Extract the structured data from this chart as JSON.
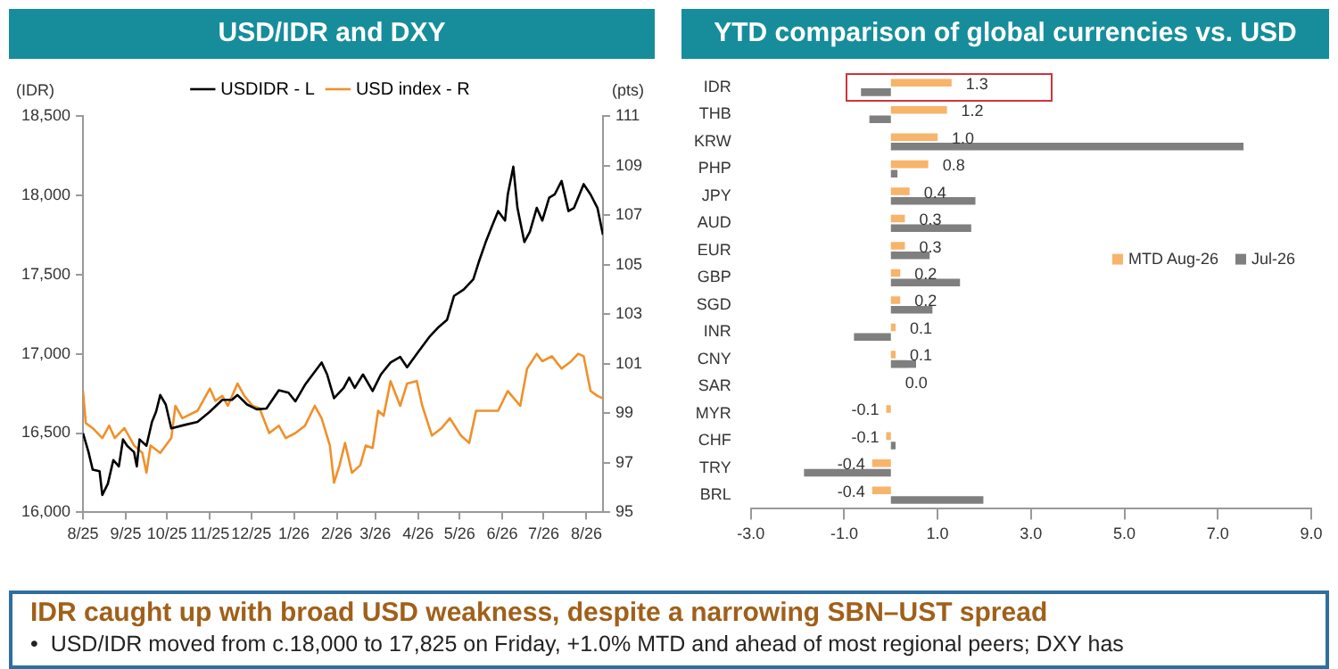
{
  "chart_data": [
    {
      "type": "line",
      "title": "USD/IDR and DXY",
      "ylabel": "(IDR)",
      "y2label": "(pts)",
      "legend": "top",
      "marker": "none",
      "xlim": [
        "2025-08-01",
        "2026-08-13"
      ],
      "xticks": [
        {
          "value": "2025-08-01",
          "label": "8/25"
        },
        {
          "value": "2025-09-01",
          "label": "9/25"
        },
        {
          "value": "2025-10-01",
          "label": "10/25"
        },
        {
          "value": "2025-11-01",
          "label": "11/25"
        },
        {
          "value": "2025-12-01",
          "label": "12/25"
        },
        {
          "value": "2026-01-01",
          "label": "1/26"
        },
        {
          "value": "2026-02-01",
          "label": "2/26"
        },
        {
          "value": "2026-03-01",
          "label": "3/26"
        },
        {
          "value": "2026-04-01",
          "label": "4/26"
        },
        {
          "value": "2026-05-01",
          "label": "5/26"
        },
        {
          "value": "2026-06-01",
          "label": "6/26"
        },
        {
          "value": "2026-07-01",
          "label": "7/26"
        },
        {
          "value": "2026-08-01",
          "label": "8/26"
        }
      ],
      "ylim": [
        16000,
        18500
      ],
      "yticks": [
        {
          "value": 16000,
          "label": "16,000"
        },
        {
          "value": 16500,
          "label": "16,500"
        },
        {
          "value": 17000,
          "label": "17,000"
        },
        {
          "value": 17500,
          "label": "17,500"
        },
        {
          "value": 18000,
          "label": "18,000"
        },
        {
          "value": 18500,
          "label": "18,500"
        }
      ],
      "y2lim": [
        95,
        111
      ],
      "y2ticks": [
        95,
        97,
        99,
        101,
        103,
        105,
        107,
        109,
        111
      ],
      "series": [
        {
          "name": "USDIDR - L",
          "color": "#000000",
          "axis": "y",
          "x": [
            "2025-08-01",
            "2025-08-05",
            "2025-08-08",
            "2025-08-13",
            "2025-08-15",
            "2025-08-19",
            "2025-08-23",
            "2025-08-27",
            "2025-08-30",
            "2025-09-02",
            "2025-09-07",
            "2025-09-09",
            "2025-09-11",
            "2025-09-16",
            "2025-09-20",
            "2025-09-23",
            "2025-09-26",
            "2025-09-30",
            "2025-10-04",
            "2025-10-13",
            "2025-10-23",
            "2025-11-01",
            "2025-11-10",
            "2025-11-17",
            "2025-11-21",
            "2025-11-28",
            "2025-12-05",
            "2025-12-12",
            "2025-12-21",
            "2025-12-28",
            "2026-01-02",
            "2026-01-09",
            "2026-01-21",
            "2026-01-25",
            "2026-01-30",
            "2026-02-06",
            "2026-02-10",
            "2026-02-14",
            "2026-02-20",
            "2026-02-27",
            "2026-03-05",
            "2026-03-12",
            "2026-03-19",
            "2026-03-24",
            "2026-03-31",
            "2026-04-09",
            "2026-04-16",
            "2026-04-22",
            "2026-04-27",
            "2026-05-04",
            "2026-05-11",
            "2026-05-15",
            "2026-05-20",
            "2026-05-25",
            "2026-05-29",
            "2026-06-03",
            "2026-06-05",
            "2026-06-09",
            "2026-06-12",
            "2026-06-17",
            "2026-06-21",
            "2026-06-26",
            "2026-06-30",
            "2026-07-05",
            "2026-07-09",
            "2026-07-14",
            "2026-07-19",
            "2026-07-23",
            "2026-07-30",
            "2026-08-04",
            "2026-08-09",
            "2026-08-13"
          ],
          "values": [
            16500,
            16380,
            16270,
            16260,
            16110,
            16180,
            16330,
            16290,
            16460,
            16420,
            16380,
            16290,
            16460,
            16420,
            16570,
            16635,
            16740,
            16680,
            16530,
            16550,
            16570,
            16635,
            16710,
            16710,
            16740,
            16680,
            16650,
            16655,
            16770,
            16755,
            16700,
            16805,
            16945,
            16870,
            16720,
            16785,
            16850,
            16785,
            16870,
            16765,
            16870,
            16945,
            16980,
            16915,
            17000,
            17105,
            17170,
            17215,
            17365,
            17405,
            17470,
            17580,
            17705,
            17815,
            17900,
            17840,
            18005,
            18180,
            17920,
            17705,
            17770,
            17920,
            17840,
            17985,
            18005,
            18090,
            17900,
            17920,
            18070,
            18005,
            17920,
            17750
          ]
        },
        {
          "name": "USD index - R",
          "color": "#f0902a",
          "axis": "y2",
          "x": [
            "2025-08-01",
            "2025-08-03",
            "2025-08-08",
            "2025-08-15",
            "2025-08-20",
            "2025-08-24",
            "2025-08-31",
            "2025-09-07",
            "2025-09-13",
            "2025-09-16",
            "2025-09-19",
            "2025-09-26",
            "2025-10-04",
            "2025-10-07",
            "2025-10-12",
            "2025-10-23",
            "2025-11-01",
            "2025-11-05",
            "2025-11-10",
            "2025-11-14",
            "2025-11-21",
            "2025-11-26",
            "2025-12-02",
            "2025-12-07",
            "2025-12-14",
            "2025-12-21",
            "2025-12-26",
            "2026-01-02",
            "2026-01-09",
            "2026-01-16",
            "2026-01-21",
            "2026-01-27",
            "2026-01-30",
            "2026-02-03",
            "2026-02-07",
            "2026-02-12",
            "2026-02-18",
            "2026-02-22",
            "2026-02-27",
            "2026-03-03",
            "2026-03-07",
            "2026-03-12",
            "2026-03-19",
            "2026-03-24",
            "2026-03-31",
            "2026-04-04",
            "2026-04-11",
            "2026-04-18",
            "2026-04-24",
            "2026-05-02",
            "2026-05-08",
            "2026-05-13",
            "2026-05-20",
            "2026-05-29",
            "2026-06-05",
            "2026-06-14",
            "2026-06-19",
            "2026-06-26",
            "2026-06-30",
            "2026-07-07",
            "2026-07-14",
            "2026-07-21",
            "2026-07-26",
            "2026-07-30",
            "2026-08-04",
            "2026-08-09",
            "2026-08-13"
          ],
          "values": [
            99.9,
            98.6,
            98.4,
            98.0,
            98.5,
            98.0,
            98.4,
            97.7,
            97.4,
            96.6,
            97.7,
            97.4,
            98.0,
            99.3,
            98.8,
            99.1,
            100.0,
            99.5,
            99.7,
            99.3,
            100.2,
            99.7,
            99.3,
            99.2,
            98.2,
            98.5,
            98.0,
            98.2,
            98.5,
            99.3,
            98.8,
            97.7,
            96.2,
            96.9,
            97.8,
            96.6,
            96.9,
            97.7,
            97.6,
            99.1,
            98.9,
            100.3,
            99.3,
            100.2,
            100.3,
            99.3,
            98.1,
            98.4,
            98.8,
            98.1,
            97.8,
            99.1,
            99.1,
            99.1,
            99.9,
            99.3,
            100.8,
            101.4,
            101.1,
            101.3,
            100.8,
            101.1,
            101.4,
            101.3,
            99.9,
            99.7,
            99.6
          ]
        }
      ]
    },
    {
      "type": "bar",
      "orientation": "horizontal",
      "title": "YTD comparison of global currencies vs. USD",
      "legend": "right",
      "categories": [
        "IDR",
        "THB",
        "KRW",
        "PHP",
        "JPY",
        "AUD",
        "EUR",
        "GBP",
        "SGD",
        "INR",
        "CNY",
        "SAR",
        "MYR",
        "CHF",
        "TRY",
        "BRL"
      ],
      "xlim": [
        -3,
        9
      ],
      "xticks": [
        {
          "value": -3,
          "label": "-3.0"
        },
        {
          "value": -1,
          "label": "-1.0"
        },
        {
          "value": 1,
          "label": "1.0"
        },
        {
          "value": 3,
          "label": "3.0"
        },
        {
          "value": 5,
          "label": "5.0"
        },
        {
          "value": 7,
          "label": "7.0"
        },
        {
          "value": 9,
          "label": "9.0"
        }
      ],
      "series": [
        {
          "name": "MTD Aug-26",
          "color": "#f7b46a",
          "values": [
            1.3,
            1.2,
            1.0,
            0.8,
            0.4,
            0.3,
            0.3,
            0.2,
            0.2,
            0.1,
            0.1,
            0.0,
            -0.1,
            -0.1,
            -0.4,
            -0.4
          ],
          "value_labels": [
            "1.3",
            "1.2",
            "1.0",
            "0.8",
            "0.4",
            "0.3",
            "0.3",
            "0.2",
            "0.2",
            "0.1",
            "0.1",
            "0.0",
            "-0.1",
            "-0.1",
            "-0.4",
            "-0.4"
          ]
        },
        {
          "name": "Jul-26",
          "color": "#7f7f7f",
          "values": [
            -0.64,
            -0.46,
            7.55,
            0.14,
            1.81,
            1.72,
            0.83,
            1.48,
            0.89,
            -0.79,
            0.54,
            0.0,
            0.0,
            0.1,
            -1.86,
            1.98
          ]
        }
      ]
    },
    {
      "type": "other",
      "title": "IDR caught up with broad USD weakness, despite a narrowing SBN–UST spread",
      "annotations": [
        "•  USD/IDR moved from c.18,000 to 17,825 on Friday, +1.0% MTD and ahead of most regional peers; DXY has"
      ]
    }
  ]
}
